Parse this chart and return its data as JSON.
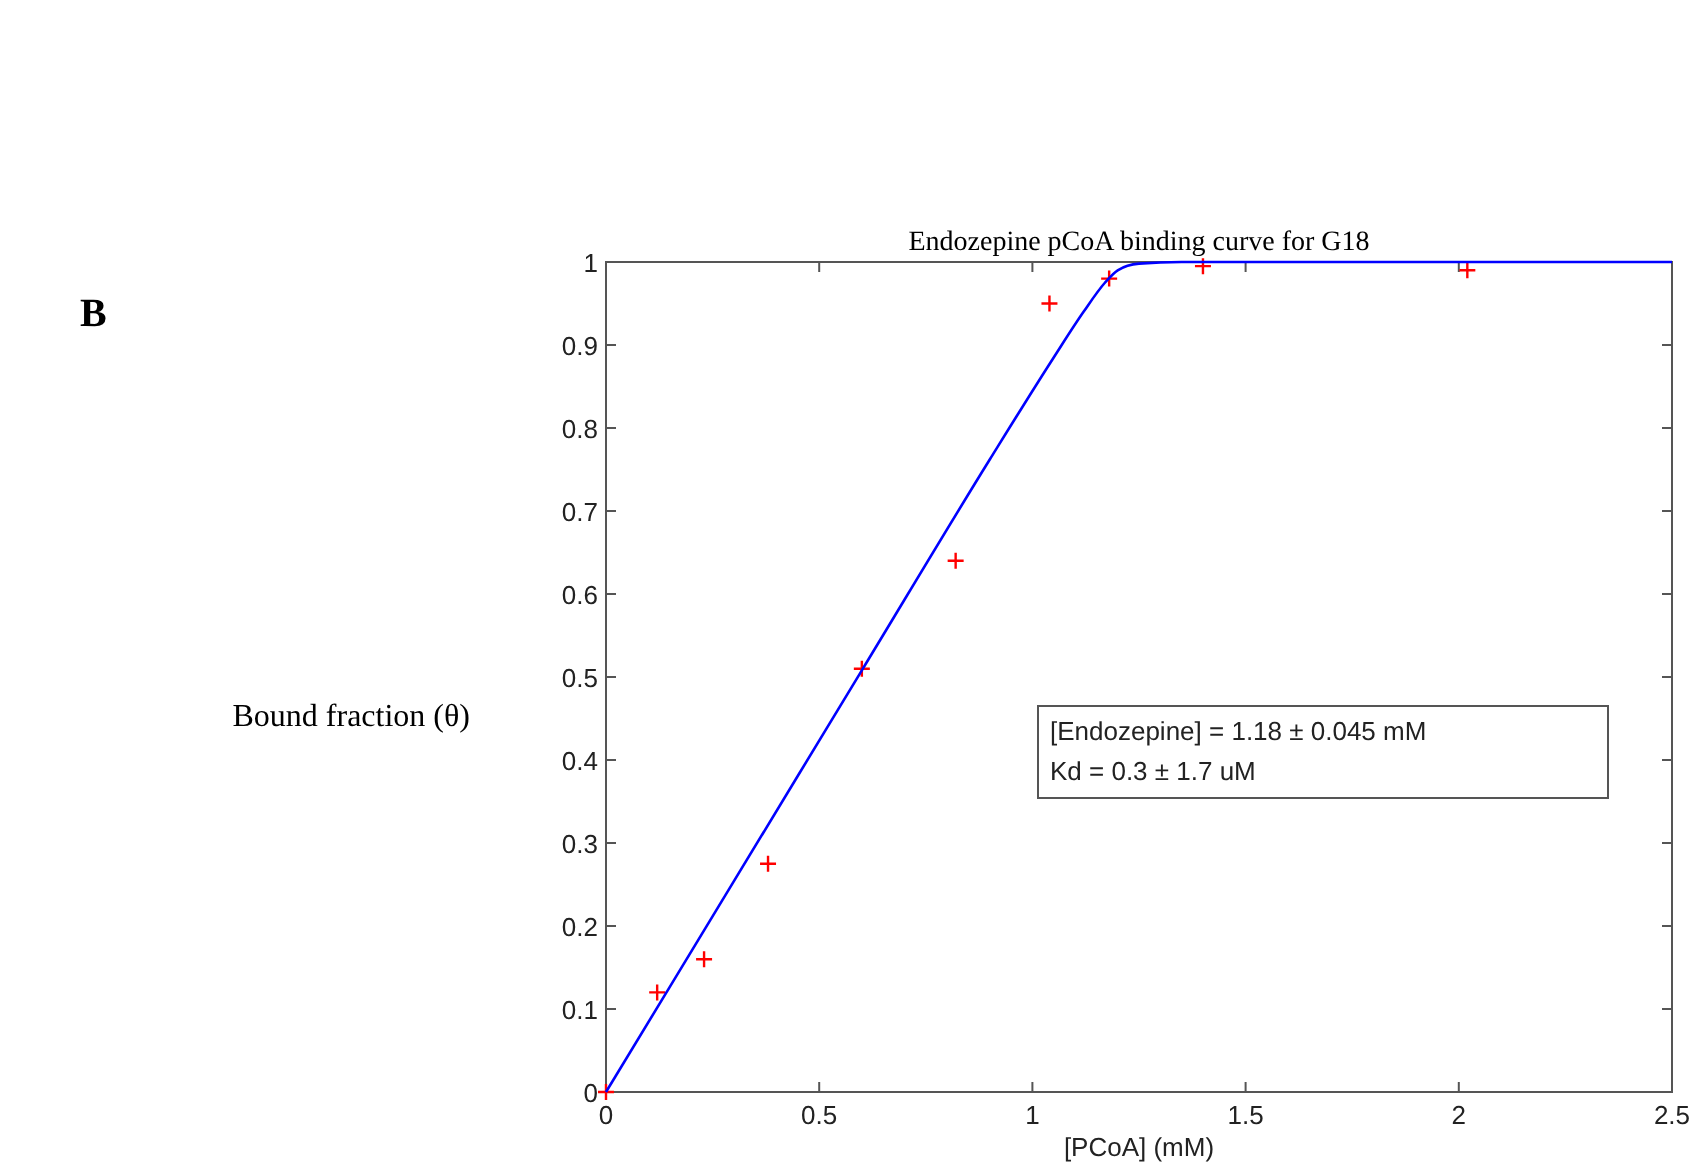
{
  "chart_data": {
    "type": "scatter",
    "title": "Endozepine pCoA binding curve for G18",
    "xlabel": "[PCoA] (mM)",
    "ylabel": "Bound fraction (θ)",
    "annotations": [
      "B",
      "[Endozepine] = 1.18  ± 0.045 mM",
      "Kd = 0.3 ± 1.7 uM"
    ],
    "xlim": [
      0,
      2.5
    ],
    "xticks": [
      0,
      0.5,
      1,
      1.5,
      2,
      2.5
    ],
    "ylim": [
      0,
      1
    ],
    "yticks": [
      0,
      0.1,
      0.2,
      0.3,
      0.4,
      0.5,
      0.6,
      0.7,
      0.8,
      0.9,
      1
    ],
    "grid": false,
    "series": [
      {
        "color": "#ff0000",
        "marker": "cross",
        "x": [
          0,
          0.12,
          0.23,
          0.38,
          0.6,
          0.82,
          1.04,
          1.18,
          1.4,
          2.02
        ],
        "values": [
          0,
          0.12,
          0.16,
          0.275,
          0.51,
          0.64,
          0.95,
          0.98,
          0.995,
          0.99
        ]
      },
      {
        "type": "line",
        "color": "#0000ff",
        "line_style": "solid",
        "x": [
          0,
          0.3,
          0.6,
          0.9,
          1.05,
          1.12,
          1.17,
          1.2,
          1.25,
          1.35,
          2.5
        ],
        "values": [
          0,
          0.254,
          0.508,
          0.762,
          0.885,
          0.94,
          0.975,
          0.99,
          0.998,
          1,
          1
        ]
      }
    ]
  }
}
